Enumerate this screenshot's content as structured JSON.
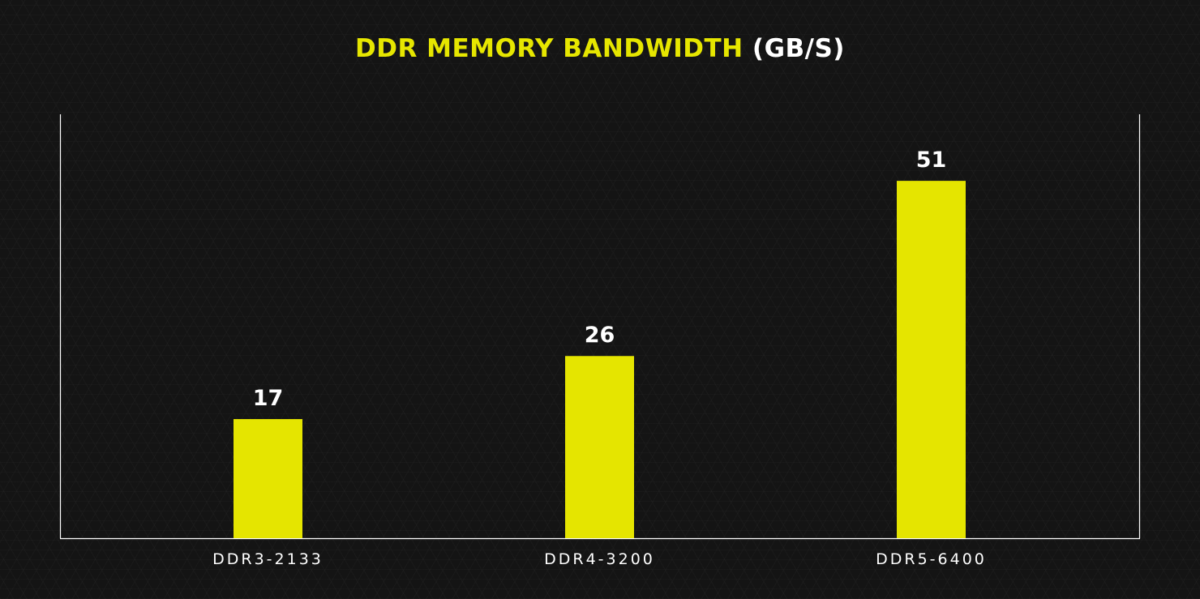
{
  "chart_data": {
    "type": "bar",
    "title": "DDR MEMORY BANDWIDTH",
    "title_unit": "(GB/S)",
    "categories": [
      "DDR3-2133",
      "DDR4-3200",
      "DDR5-6400"
    ],
    "values": [
      17,
      26,
      51
    ],
    "xlabel": "",
    "ylabel": "",
    "ylim": [
      0,
      60.5
    ],
    "grid": false,
    "legend": "none",
    "colors": {
      "bar": "#e5e500",
      "title": "#e6e600",
      "background": "#141414",
      "text": "#ffffff",
      "axis": "#ffffff"
    }
  }
}
